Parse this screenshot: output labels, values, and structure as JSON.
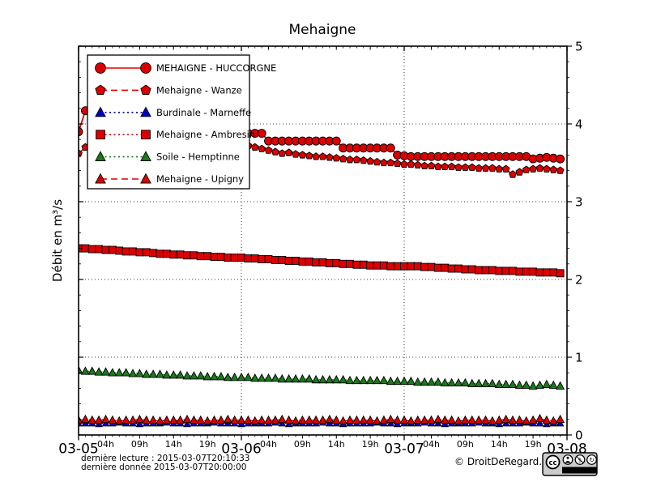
{
  "title": "Mehaigne",
  "footer": {
    "line1": "dernière lecture : 2015-03-07T20:10:33",
    "line2": "dernière donnée  2015-03-07T20:00:00",
    "copyright": "© DroitDeRegard.be",
    "license_badge": {
      "cc": "cc",
      "parts": [
        "BY",
        "NC",
        "SA"
      ]
    }
  },
  "colors": {
    "red": "#dd0000",
    "green": "#1a7a1a",
    "blue": "#0000cc",
    "axis": "#000000",
    "background": "#ffffff"
  },
  "chart_data": {
    "type": "line",
    "title": "Mehaigne",
    "xlabel": "",
    "ylabel": "Débit en m³/s",
    "ylim": [
      0,
      5
    ],
    "yticks": [
      0,
      1,
      2,
      3,
      4,
      5
    ],
    "y_minor_step": 0.2,
    "xlim_hours": [
      0,
      72
    ],
    "x_step_hours": 1,
    "x_start": "2015-03-05 00:00",
    "grid": {
      "style": "dotted",
      "horizontal_at": [
        1,
        2,
        3,
        4
      ],
      "vertical_at_hours": [
        24,
        48
      ]
    },
    "legend_position": "upper-left",
    "day_ticks": [
      {
        "hour": 0,
        "label": "03-05"
      },
      {
        "hour": 24,
        "label": "03-06"
      },
      {
        "hour": 48,
        "label": "03-07"
      },
      {
        "hour": 72,
        "label": "03-08"
      }
    ],
    "hour_ticks": [
      {
        "hour": 4,
        "label": "04h"
      },
      {
        "hour": 9,
        "label": "09h"
      },
      {
        "hour": 14,
        "label": "14h"
      },
      {
        "hour": 19,
        "label": "19h"
      },
      {
        "hour": 28,
        "label": "04h"
      },
      {
        "hour": 33,
        "label": "09h"
      },
      {
        "hour": 38,
        "label": "14h"
      },
      {
        "hour": 43,
        "label": "19h"
      },
      {
        "hour": 52,
        "label": "04h"
      },
      {
        "hour": 57,
        "label": "09h"
      },
      {
        "hour": 62,
        "label": "14h"
      },
      {
        "hour": 67,
        "label": "19h"
      }
    ],
    "series": [
      {
        "name": "MEHAIGNE - HUCCORGNE",
        "slug": "mehaigne-huccorgne",
        "color": "#dd0000",
        "marker": "circle",
        "line_style": "solid",
        "marker_radius": 5,
        "values": [
          3.9,
          4.17,
          4.05,
          3.97,
          3.95,
          3.94,
          3.93,
          3.93,
          3.92,
          3.92,
          3.91,
          3.91,
          3.9,
          3.9,
          3.9,
          3.89,
          3.89,
          3.89,
          3.88,
          3.88,
          3.88,
          3.88,
          3.88,
          3.88,
          3.88,
          3.88,
          3.88,
          3.88,
          3.78,
          3.78,
          3.78,
          3.78,
          3.78,
          3.78,
          3.78,
          3.78,
          3.78,
          3.78,
          3.78,
          3.69,
          3.69,
          3.69,
          3.69,
          3.69,
          3.69,
          3.69,
          3.69,
          3.6,
          3.59,
          3.58,
          3.58,
          3.58,
          3.58,
          3.58,
          3.58,
          3.58,
          3.58,
          3.58,
          3.58,
          3.58,
          3.58,
          3.58,
          3.58,
          3.58,
          3.58,
          3.58,
          3.58,
          3.55,
          3.56,
          3.57,
          3.56,
          3.55
        ]
      },
      {
        "name": "Mehaigne - Wanze",
        "slug": "mehaigne-wanze",
        "color": "#dd0000",
        "marker": "pentagon",
        "line_style": "dashed",
        "marker_radius": 4.6,
        "values": [
          3.62,
          3.7,
          3.72,
          3.73,
          3.73,
          3.74,
          3.74,
          3.74,
          3.73,
          3.73,
          3.73,
          3.73,
          3.72,
          3.72,
          3.72,
          3.72,
          3.72,
          3.72,
          3.72,
          3.72,
          3.72,
          3.72,
          3.72,
          3.72,
          3.72,
          3.72,
          3.7,
          3.68,
          3.66,
          3.64,
          3.62,
          3.63,
          3.61,
          3.6,
          3.59,
          3.58,
          3.58,
          3.57,
          3.56,
          3.55,
          3.54,
          3.54,
          3.53,
          3.52,
          3.51,
          3.5,
          3.5,
          3.49,
          3.48,
          3.48,
          3.47,
          3.46,
          3.46,
          3.45,
          3.45,
          3.45,
          3.44,
          3.44,
          3.44,
          3.43,
          3.43,
          3.43,
          3.42,
          3.42,
          3.35,
          3.38,
          3.41,
          3.42,
          3.43,
          3.42,
          3.41,
          3.4
        ]
      },
      {
        "name": "Burdinale - Marneffe",
        "slug": "burdinale-marneffe",
        "color": "#0000cc",
        "marker": "triangle",
        "line_style": "dotted",
        "marker_radius": 4.2,
        "values": [
          0.15,
          0.15,
          0.15,
          0.14,
          0.15,
          0.15,
          0.16,
          0.15,
          0.15,
          0.14,
          0.15,
          0.15,
          0.15,
          0.16,
          0.15,
          0.15,
          0.14,
          0.15,
          0.15,
          0.15,
          0.16,
          0.15,
          0.15,
          0.15,
          0.14,
          0.15,
          0.15,
          0.15,
          0.15,
          0.16,
          0.15,
          0.14,
          0.15,
          0.15,
          0.15,
          0.15,
          0.16,
          0.15,
          0.15,
          0.14,
          0.15,
          0.15,
          0.15,
          0.15,
          0.16,
          0.15,
          0.15,
          0.14,
          0.15,
          0.15,
          0.15,
          0.16,
          0.15,
          0.15,
          0.14,
          0.15,
          0.15,
          0.15,
          0.15,
          0.16,
          0.15,
          0.15,
          0.14,
          0.15,
          0.15,
          0.15,
          0.16,
          0.15,
          0.15,
          0.14,
          0.15,
          0.15
        ]
      },
      {
        "name": "Mehaigne - Ambresin",
        "slug": "mehaigne-ambresin",
        "color": "#dd0000",
        "marker": "square",
        "line_style": "dotted",
        "marker_radius": 4.5,
        "values": [
          2.4,
          2.4,
          2.39,
          2.39,
          2.38,
          2.38,
          2.37,
          2.36,
          2.36,
          2.35,
          2.35,
          2.34,
          2.33,
          2.33,
          2.32,
          2.32,
          2.31,
          2.31,
          2.3,
          2.3,
          2.29,
          2.29,
          2.28,
          2.28,
          2.28,
          2.27,
          2.27,
          2.26,
          2.26,
          2.25,
          2.25,
          2.24,
          2.24,
          2.23,
          2.23,
          2.22,
          2.22,
          2.21,
          2.21,
          2.2,
          2.2,
          2.19,
          2.19,
          2.18,
          2.18,
          2.18,
          2.17,
          2.17,
          2.17,
          2.17,
          2.17,
          2.16,
          2.16,
          2.15,
          2.15,
          2.14,
          2.14,
          2.13,
          2.13,
          2.12,
          2.12,
          2.12,
          2.11,
          2.11,
          2.11,
          2.1,
          2.1,
          2.1,
          2.09,
          2.09,
          2.09,
          2.08
        ]
      },
      {
        "name": "Soile - Hemptinne",
        "slug": "soile-hemptinne",
        "color": "#1a7a1a",
        "marker": "triangle",
        "line_style": "dotted",
        "marker_radius": 5,
        "values": [
          0.83,
          0.82,
          0.82,
          0.81,
          0.81,
          0.8,
          0.8,
          0.8,
          0.79,
          0.79,
          0.78,
          0.78,
          0.78,
          0.77,
          0.77,
          0.77,
          0.76,
          0.76,
          0.76,
          0.75,
          0.75,
          0.75,
          0.74,
          0.74,
          0.74,
          0.74,
          0.73,
          0.73,
          0.73,
          0.73,
          0.72,
          0.72,
          0.72,
          0.72,
          0.72,
          0.71,
          0.71,
          0.71,
          0.71,
          0.71,
          0.7,
          0.7,
          0.7,
          0.7,
          0.7,
          0.7,
          0.69,
          0.69,
          0.69,
          0.69,
          0.68,
          0.68,
          0.68,
          0.68,
          0.67,
          0.67,
          0.67,
          0.67,
          0.66,
          0.66,
          0.66,
          0.66,
          0.65,
          0.65,
          0.65,
          0.64,
          0.64,
          0.63,
          0.64,
          0.65,
          0.64,
          0.63
        ]
      },
      {
        "name": "Mehaigne - Upigny",
        "slug": "mehaigne-upigny",
        "color": "#dd0000",
        "marker": "triangle",
        "line_style": "dashed",
        "marker_radius": 5,
        "values": [
          0.19,
          0.2,
          0.19,
          0.19,
          0.2,
          0.19,
          0.18,
          0.19,
          0.19,
          0.2,
          0.19,
          0.19,
          0.18,
          0.19,
          0.19,
          0.19,
          0.2,
          0.19,
          0.19,
          0.18,
          0.19,
          0.19,
          0.2,
          0.19,
          0.19,
          0.19,
          0.18,
          0.19,
          0.19,
          0.19,
          0.2,
          0.19,
          0.18,
          0.19,
          0.19,
          0.19,
          0.19,
          0.2,
          0.19,
          0.18,
          0.19,
          0.19,
          0.19,
          0.19,
          0.18,
          0.19,
          0.2,
          0.19,
          0.19,
          0.18,
          0.19,
          0.19,
          0.19,
          0.2,
          0.19,
          0.19,
          0.18,
          0.19,
          0.19,
          0.19,
          0.19,
          0.18,
          0.19,
          0.2,
          0.19,
          0.19,
          0.18,
          0.19,
          0.21,
          0.19,
          0.18,
          0.2
        ]
      }
    ]
  }
}
